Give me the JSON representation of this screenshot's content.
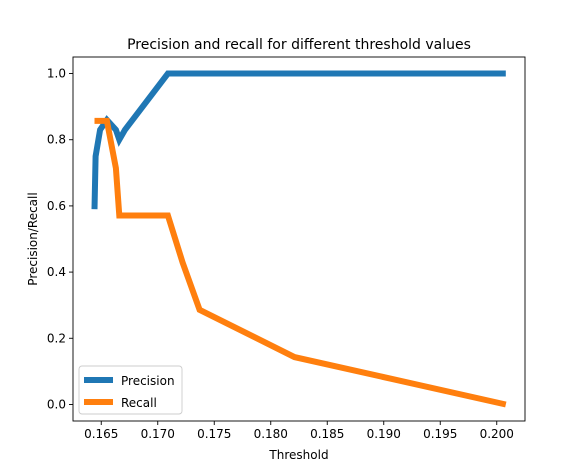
{
  "chart_data": {
    "type": "line",
    "title": "Precision and recall for different threshold values",
    "xlabel": "Threshold",
    "ylabel": "Precision/Recall",
    "xlim": [
      0.1625,
      0.2025
    ],
    "ylim": [
      -0.05,
      1.05
    ],
    "xticks": [
      "0.165",
      "0.170",
      "0.175",
      "0.180",
      "0.185",
      "0.190",
      "0.195",
      "0.200"
    ],
    "yticks": [
      "0.0",
      "0.2",
      "0.4",
      "0.6",
      "0.8",
      "1.0"
    ],
    "grid": false,
    "legend_position": "lower-left",
    "series": [
      {
        "name": "Precision",
        "color": "#1f77b4",
        "x": [
          0.1644,
          0.1645,
          0.1649,
          0.1655,
          0.1663,
          0.1666,
          0.1671,
          0.1709,
          0.2008
        ],
        "y": [
          0.59,
          0.75,
          0.83,
          0.86,
          0.83,
          0.8,
          0.83,
          1.0,
          1.0
        ]
      },
      {
        "name": "Recall",
        "color": "#ff7f0e",
        "x": [
          0.1644,
          0.1655,
          0.1663,
          0.1666,
          0.1709,
          0.1722,
          0.1737,
          0.1821,
          0.2008
        ],
        "y": [
          0.857,
          0.857,
          0.714,
          0.571,
          0.571,
          0.429,
          0.286,
          0.143,
          0.0
        ]
      }
    ]
  }
}
